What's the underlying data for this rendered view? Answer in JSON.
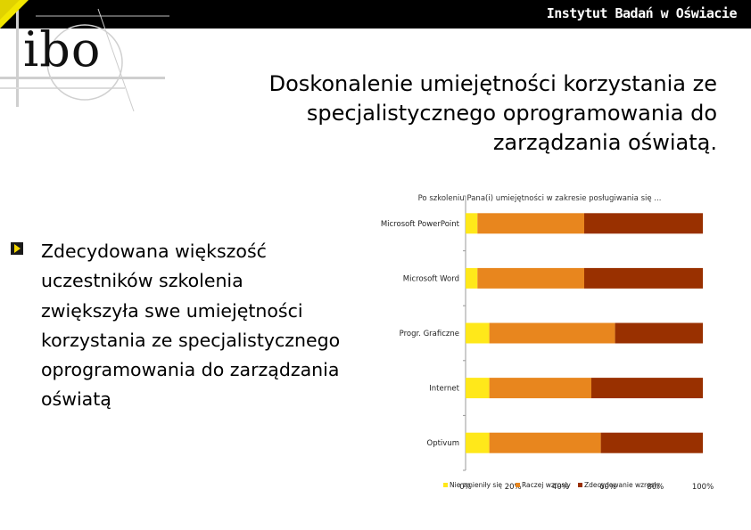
{
  "header": {
    "brand": "Instytut Badań w Oświacie",
    "logo_text": "ibo"
  },
  "slide": {
    "title": "Doskonalenie umiejętności korzystania ze specjalistycznego oprogramowania do zarządzania oświatą.",
    "bullet_text": "Zdecydowana większość uczestników szkolenia zwiększyła swe umiejętności korzystania ze specjalistycznego oprogramowania do zarządzania oświatą"
  },
  "colors": {
    "nie_zmienily": "#ffe81a",
    "raczej_wzrosly": "#e8861e",
    "zdecydowanie_wzrosly": "#993000"
  },
  "chart_data": {
    "type": "bar",
    "orientation": "horizontal",
    "stacked": true,
    "title": "Po szkoleniu Pana(i) umiejętności w zakresie posługiwania się ...",
    "categories": [
      "Microsoft PowerPoint",
      "Microsoft Word",
      "Progr. Graficzne",
      "Internet",
      "Optivum"
    ],
    "series": [
      {
        "name": "Nie zmieniły się",
        "values": [
          5,
          5,
          10,
          10,
          10
        ]
      },
      {
        "name": "Raczej wzrosły",
        "values": [
          45,
          45,
          53,
          43,
          47
        ]
      },
      {
        "name": "Zdecydowanie wzrosły",
        "values": [
          50,
          50,
          37,
          47,
          43
        ]
      }
    ],
    "xticks": [
      "0%",
      "20%",
      "40%",
      "60%",
      "80%",
      "100%"
    ],
    "xlim": [
      0,
      100
    ],
    "legend": "bottom"
  }
}
